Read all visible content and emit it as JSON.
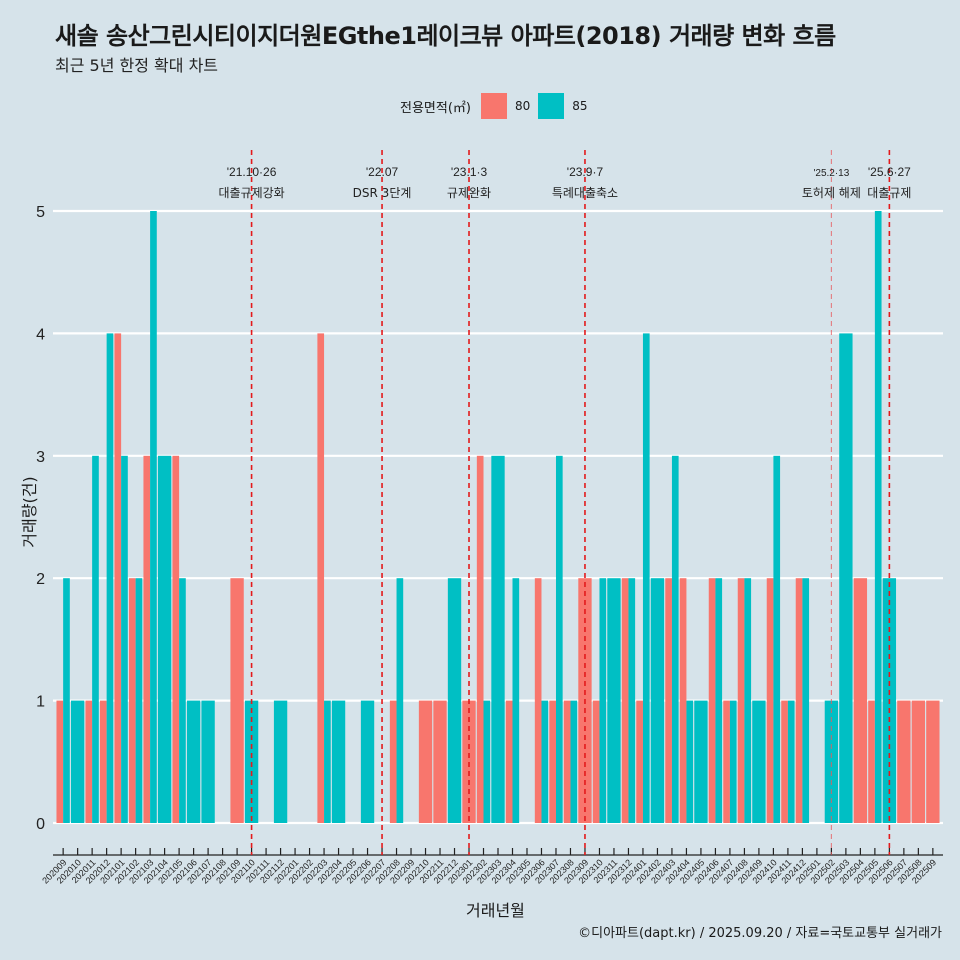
{
  "header": {
    "title": "새솔 송산그린시티이지더원EGthe1레이크뷰 아파트(2018) 거래량 변화 흐름",
    "subtitle": "최근 5년 한정 확대 차트"
  },
  "legend": {
    "title": "전용면적(㎡)",
    "items": [
      {
        "label": "80",
        "color": "#F8766D"
      },
      {
        "label": "85",
        "color": "#00BFC4"
      }
    ]
  },
  "footer": "©디아파트(dapt.kr) / 2025.09.20 / 자료=국토교통부 실거래가",
  "chart_data": {
    "type": "bar",
    "title": "새솔 송산그린시티이지더원EGthe1레이크뷰 아파트(2018) 거래량 변화 흐름",
    "subtitle": "최근 5년 한정 확대 차트",
    "xlabel": "거래년월",
    "ylabel": "거래량(건)",
    "ylim": [
      0,
      5
    ],
    "yticks": [
      0,
      1,
      2,
      3,
      4,
      5
    ],
    "grid": true,
    "legend_position": "top",
    "categories": [
      "202009",
      "202010",
      "202011",
      "202012",
      "202101",
      "202102",
      "202103",
      "202104",
      "202105",
      "202106",
      "202107",
      "202108",
      "202109",
      "202110",
      "202111",
      "202112",
      "202201",
      "202202",
      "202203",
      "202204",
      "202205",
      "202206",
      "202207",
      "202208",
      "202209",
      "202210",
      "202211",
      "202212",
      "202301",
      "202302",
      "202303",
      "202304",
      "202305",
      "202306",
      "202307",
      "202308",
      "202309",
      "202310",
      "202311",
      "202312",
      "202401",
      "202402",
      "202403",
      "202404",
      "202405",
      "202406",
      "202407",
      "202408",
      "202409",
      "202410",
      "202411",
      "202412",
      "202501",
      "202502",
      "202503",
      "202504",
      "202505",
      "202506",
      "202507",
      "202508",
      "202509"
    ],
    "series": [
      {
        "name": "80",
        "color": "#F8766D",
        "values": [
          1,
          0,
          1,
          1,
          4,
          2,
          3,
          0,
          3,
          0,
          0,
          0,
          2,
          0,
          0,
          0,
          0,
          0,
          4,
          0,
          0,
          0,
          0,
          1,
          0,
          1,
          1,
          0,
          1,
          3,
          0,
          1,
          0,
          2,
          1,
          1,
          2,
          1,
          0,
          2,
          1,
          0,
          2,
          2,
          0,
          2,
          1,
          2,
          0,
          2,
          1,
          2,
          0,
          0,
          0,
          2,
          1,
          0,
          1,
          1,
          1
        ]
      },
      {
        "name": "85",
        "color": "#00BFC4",
        "values": [
          2,
          1,
          3,
          4,
          3,
          2,
          5,
          3,
          2,
          1,
          1,
          0,
          0,
          1,
          0,
          1,
          0,
          0,
          1,
          1,
          0,
          1,
          0,
          2,
          0,
          0,
          0,
          2,
          0,
          1,
          3,
          2,
          0,
          1,
          3,
          1,
          0,
          2,
          2,
          2,
          4,
          2,
          3,
          1,
          1,
          2,
          1,
          2,
          1,
          3,
          1,
          2,
          0,
          1,
          4,
          0,
          5,
          2,
          0,
          0,
          0
        ]
      }
    ],
    "annotations": [
      {
        "date": "202110",
        "line1": "'21.10·26",
        "line2": "대출규제강화",
        "style": "strong"
      },
      {
        "date": "202207",
        "line1": "'22.07",
        "line2": "DSR 3단계",
        "style": "strong"
      },
      {
        "date": "202301",
        "line1": "'23.1·3",
        "line2": "규제완화",
        "style": "strong"
      },
      {
        "date": "202309",
        "line1": "'23.9·7",
        "line2": "특례대출축소",
        "style": "strong"
      },
      {
        "date": "202502",
        "line1": "'25.2·13",
        "line2": "토허제 해제",
        "style": "light"
      },
      {
        "date": "202506",
        "line1": "'25.6·27",
        "line2": "대출규제",
        "style": "strong"
      }
    ]
  }
}
